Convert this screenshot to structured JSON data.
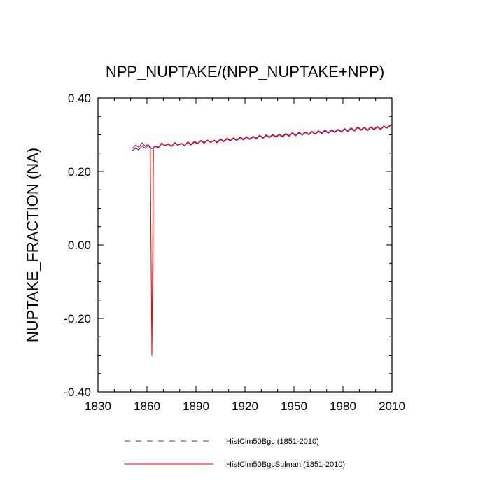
{
  "chart_data": {
    "type": "line",
    "title": "NPP_NUPTAKE/(NPP_NUPTAKE+NPP)",
    "xlabel": "",
    "ylabel": "NUPTAKE_FRACTION  (NA)",
    "xlim": [
      1830,
      2010
    ],
    "ylim": [
      -0.4,
      0.4
    ],
    "x_ticks": [
      1830,
      1860,
      1890,
      1920,
      1950,
      1980,
      2010
    ],
    "x_tick_labels": [
      "1830",
      "1860",
      "1890",
      "1920",
      "1950",
      "1980",
      "2010"
    ],
    "y_ticks": [
      -0.4,
      -0.2,
      0.0,
      0.2,
      0.4
    ],
    "y_tick_labels": [
      "-0.40",
      "-0.20",
      "0.00",
      "0.20",
      "0.40"
    ],
    "grid": false,
    "legend_position": "bottom",
    "series": [
      {
        "name": "IHistClm50Bgc (1851-2010)",
        "color": "#3333cc",
        "line_style": "dashed",
        "x": [
          1851,
          1853,
          1855,
          1857,
          1859,
          1861,
          1863,
          1865,
          1867,
          1869,
          1871,
          1873,
          1875,
          1877,
          1879,
          1881,
          1883,
          1885,
          1887,
          1889,
          1891,
          1893,
          1895,
          1897,
          1899,
          1901,
          1903,
          1905,
          1907,
          1909,
          1911,
          1913,
          1915,
          1917,
          1919,
          1921,
          1923,
          1925,
          1927,
          1929,
          1931,
          1933,
          1935,
          1937,
          1939,
          1941,
          1943,
          1945,
          1947,
          1949,
          1951,
          1953,
          1955,
          1957,
          1959,
          1961,
          1963,
          1965,
          1967,
          1969,
          1971,
          1973,
          1975,
          1977,
          1979,
          1981,
          1983,
          1985,
          1987,
          1989,
          1991,
          1993,
          1995,
          1997,
          1999,
          2001,
          2003,
          2005,
          2007,
          2010
        ],
        "y": [
          0.257,
          0.263,
          0.259,
          0.27,
          0.263,
          0.272,
          0.262,
          0.268,
          0.264,
          0.276,
          0.27,
          0.274,
          0.268,
          0.277,
          0.271,
          0.276,
          0.27,
          0.279,
          0.272,
          0.28,
          0.275,
          0.283,
          0.277,
          0.285,
          0.279,
          0.284,
          0.278,
          0.287,
          0.281,
          0.289,
          0.283,
          0.29,
          0.284,
          0.292,
          0.286,
          0.293,
          0.287,
          0.294,
          0.289,
          0.297,
          0.29,
          0.298,
          0.292,
          0.299,
          0.293,
          0.3,
          0.294,
          0.302,
          0.296,
          0.304,
          0.297,
          0.305,
          0.299,
          0.306,
          0.3,
          0.308,
          0.301,
          0.309,
          0.303,
          0.311,
          0.304,
          0.312,
          0.306,
          0.313,
          0.307,
          0.315,
          0.309,
          0.317,
          0.31,
          0.32,
          0.312,
          0.319,
          0.311,
          0.32,
          0.313,
          0.321,
          0.314,
          0.322,
          0.318,
          0.328
        ]
      },
      {
        "name": "IHistClm50BgcSulman (1851-2010)",
        "color": "#ff0000",
        "line_style": "solid",
        "x": [
          1851,
          1853,
          1855,
          1857,
          1859,
          1860,
          1861,
          1862,
          1863,
          1864,
          1865,
          1867,
          1869,
          1871,
          1873,
          1875,
          1877,
          1879,
          1881,
          1883,
          1885,
          1887,
          1889,
          1891,
          1893,
          1895,
          1897,
          1899,
          1901,
          1903,
          1905,
          1907,
          1909,
          1911,
          1913,
          1915,
          1917,
          1919,
          1921,
          1923,
          1925,
          1927,
          1929,
          1931,
          1933,
          1935,
          1937,
          1939,
          1941,
          1943,
          1945,
          1947,
          1949,
          1951,
          1953,
          1955,
          1957,
          1959,
          1961,
          1963,
          1965,
          1967,
          1969,
          1971,
          1973,
          1975,
          1977,
          1979,
          1981,
          1983,
          1985,
          1987,
          1989,
          1991,
          1993,
          1995,
          1997,
          1999,
          2001,
          2003,
          2005,
          2007,
          2010
        ],
        "y": [
          0.262,
          0.272,
          0.266,
          0.278,
          0.268,
          0.273,
          0.27,
          0.262,
          -0.3,
          0.265,
          0.27,
          0.266,
          0.278,
          0.271,
          0.276,
          0.269,
          0.279,
          0.272,
          0.277,
          0.271,
          0.281,
          0.274,
          0.282,
          0.277,
          0.285,
          0.279,
          0.286,
          0.28,
          0.286,
          0.28,
          0.289,
          0.283,
          0.291,
          0.285,
          0.292,
          0.286,
          0.294,
          0.288,
          0.295,
          0.289,
          0.296,
          0.291,
          0.299,
          0.292,
          0.3,
          0.294,
          0.301,
          0.295,
          0.302,
          0.296,
          0.304,
          0.298,
          0.306,
          0.299,
          0.307,
          0.301,
          0.308,
          0.302,
          0.31,
          0.303,
          0.311,
          0.305,
          0.313,
          0.306,
          0.314,
          0.308,
          0.315,
          0.309,
          0.317,
          0.311,
          0.319,
          0.312,
          0.322,
          0.314,
          0.321,
          0.313,
          0.322,
          0.315,
          0.323,
          0.316,
          0.324,
          0.32,
          0.33
        ]
      }
    ]
  }
}
